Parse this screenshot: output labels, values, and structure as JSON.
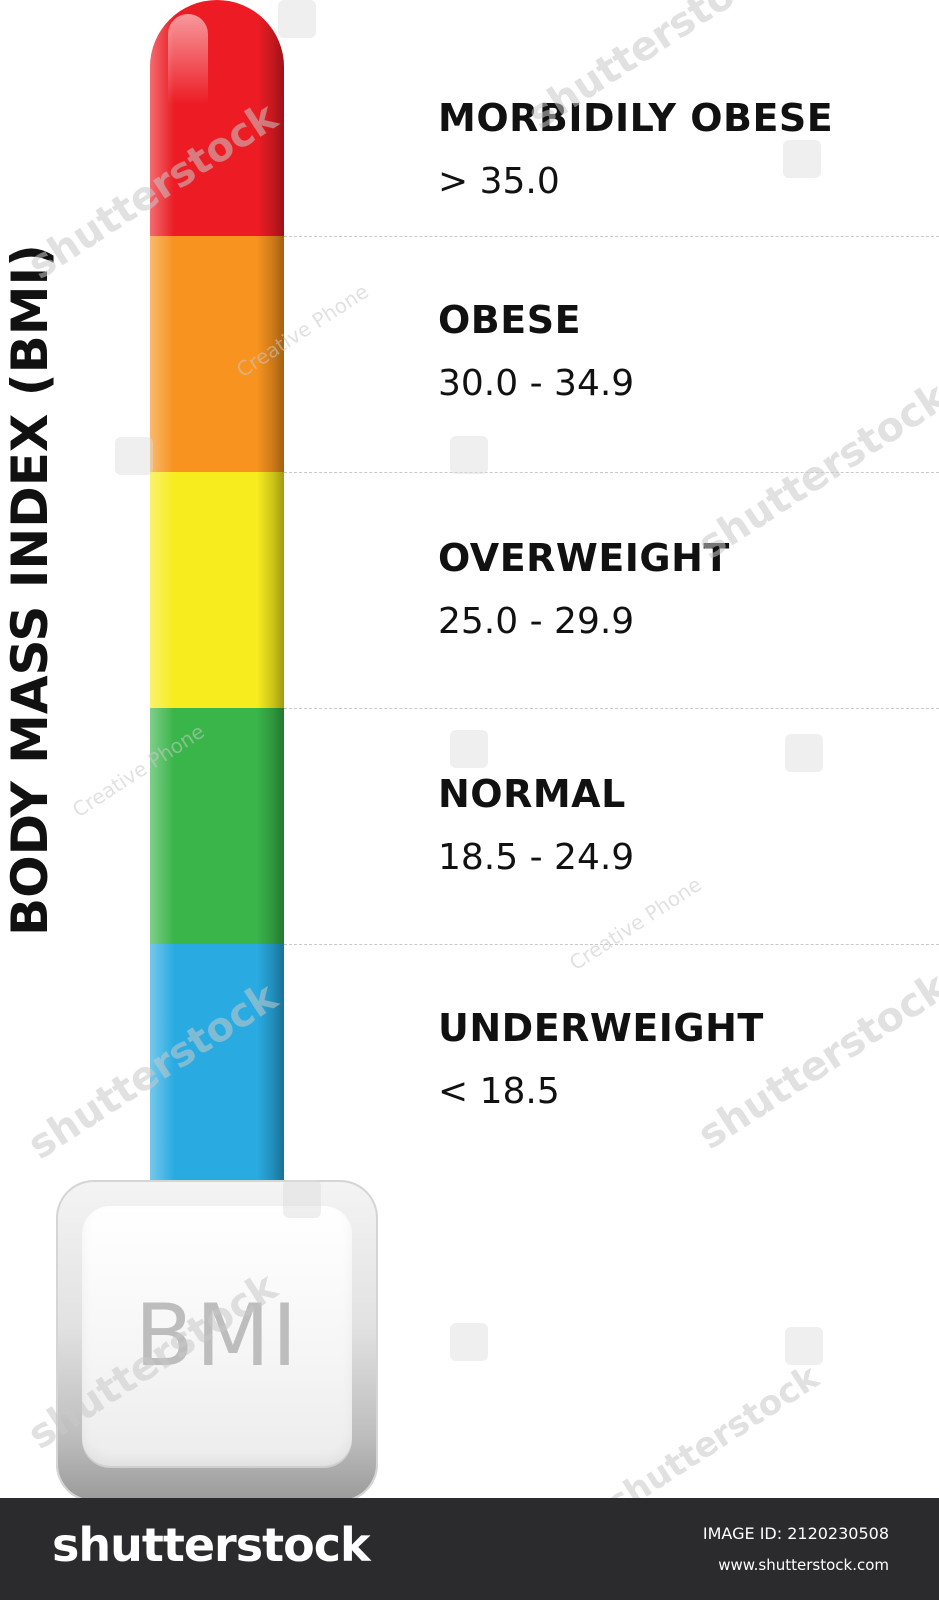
{
  "title": "BODY MASS INDEX (BMI)",
  "bulb_label": "BMI",
  "categories": [
    {
      "name": "MORBIDILY OBESE",
      "range": "> 35.0",
      "color": "#ed1c24"
    },
    {
      "name": "OBESE",
      "range": "30.0 - 34.9",
      "color": "#f7931e"
    },
    {
      "name": "OVERWEIGHT",
      "range": "25.0 - 29.9",
      "color": "#f7ec1e"
    },
    {
      "name": "NORMAL",
      "range": "18.5 - 24.9",
      "color": "#39b54a"
    },
    {
      "name": "UNDERWEIGHT",
      "range": "< 18.5",
      "color": "#29abe2"
    }
  ],
  "watermark": {
    "brand": "shutterstock",
    "credit": "Creative Phone"
  },
  "footer": {
    "logo": "shutterstock",
    "image_id": "IMAGE ID: 2120230508",
    "url": "www.shutterstock.com"
  }
}
